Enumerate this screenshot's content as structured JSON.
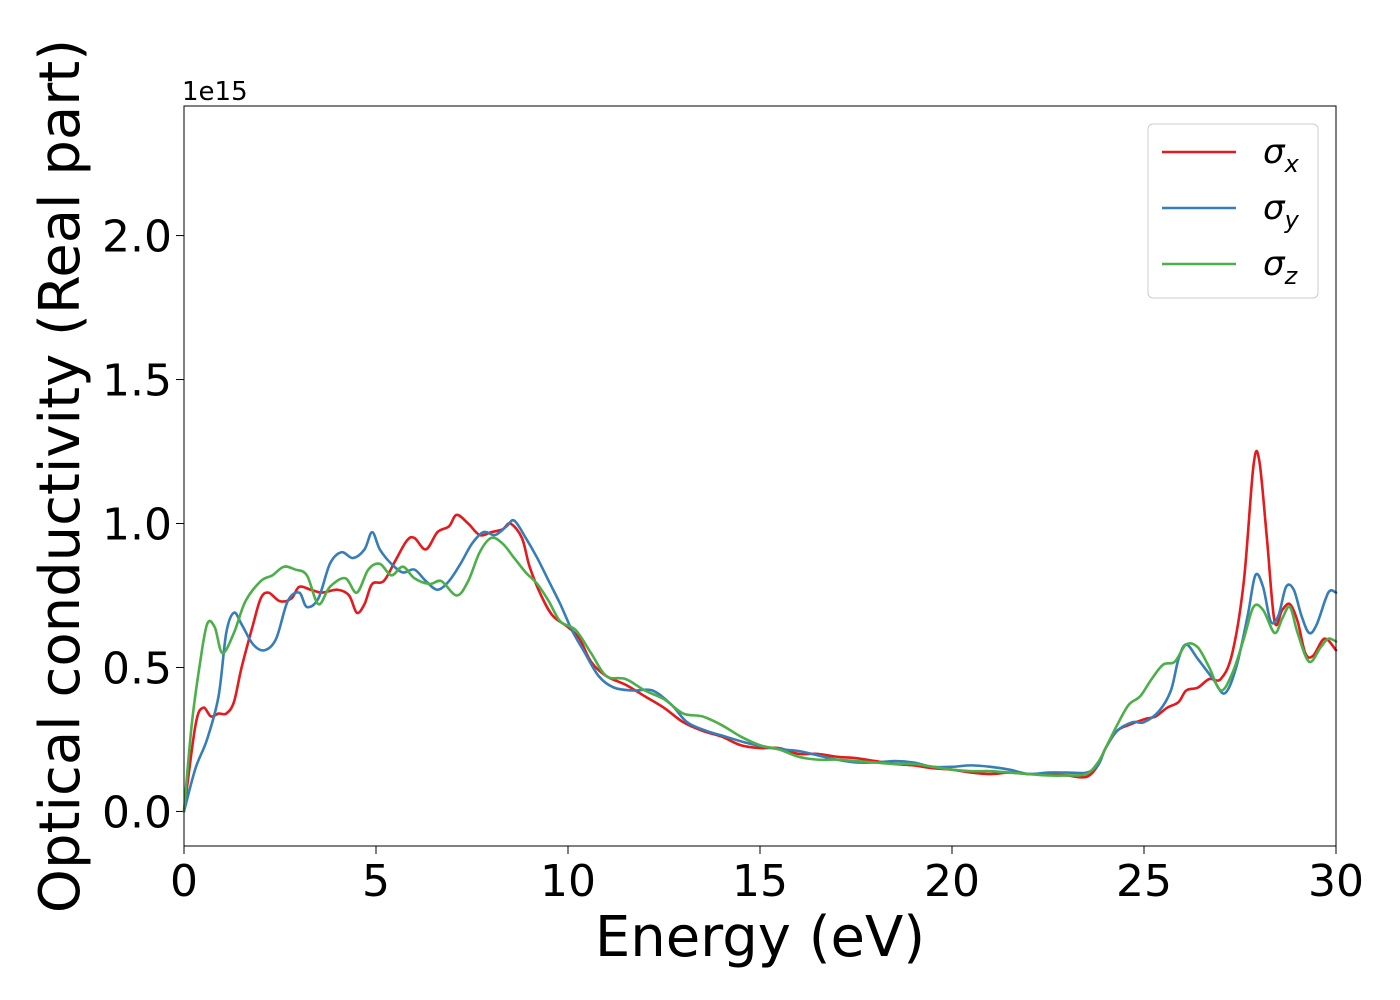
{
  "chart_data": {
    "type": "line",
    "title": "",
    "xlabel": "Energy (eV)",
    "ylabel": "Optical conductivity (Real part)",
    "y_offset_label": "1e15",
    "xlim": [
      0,
      30
    ],
    "ylim": [
      -0.12,
      2.45
    ],
    "y_scale_factor": 1000000000000000.0,
    "grid": false,
    "legend_position": "top-right",
    "x_ticks": [
      0,
      5,
      10,
      15,
      20,
      25,
      30
    ],
    "x_tick_labels": [
      "0",
      "5",
      "10",
      "15",
      "20",
      "25",
      "30"
    ],
    "y_ticks": [
      0.0,
      0.5,
      1.0,
      1.5,
      2.0
    ],
    "y_tick_labels": [
      "0.0",
      "0.5",
      "1.0",
      "1.5",
      "2.0"
    ],
    "series": [
      {
        "name": "σx",
        "name_base": "σ",
        "name_sub": "x",
        "color": "#e41a1c",
        "points": [
          [
            0,
            0.0
          ],
          [
            0.3,
            0.3
          ],
          [
            0.5,
            0.36
          ],
          [
            0.7,
            0.33
          ],
          [
            0.9,
            0.34
          ],
          [
            1.1,
            0.34
          ],
          [
            1.3,
            0.38
          ],
          [
            1.5,
            0.5
          ],
          [
            1.8,
            0.65
          ],
          [
            2.0,
            0.74
          ],
          [
            2.2,
            0.76
          ],
          [
            2.5,
            0.73
          ],
          [
            2.8,
            0.74
          ],
          [
            3.0,
            0.78
          ],
          [
            3.3,
            0.77
          ],
          [
            3.6,
            0.76
          ],
          [
            4.0,
            0.77
          ],
          [
            4.3,
            0.75
          ],
          [
            4.5,
            0.69
          ],
          [
            4.7,
            0.72
          ],
          [
            4.9,
            0.79
          ],
          [
            5.2,
            0.8
          ],
          [
            5.5,
            0.87
          ],
          [
            5.8,
            0.94
          ],
          [
            6.0,
            0.95
          ],
          [
            6.3,
            0.91
          ],
          [
            6.6,
            0.97
          ],
          [
            6.9,
            0.99
          ],
          [
            7.1,
            1.03
          ],
          [
            7.4,
            1.0
          ],
          [
            7.7,
            0.96
          ],
          [
            8.0,
            0.97
          ],
          [
            8.3,
            0.98
          ],
          [
            8.5,
            1.0
          ],
          [
            8.8,
            0.95
          ],
          [
            9.0,
            0.85
          ],
          [
            9.3,
            0.75
          ],
          [
            9.6,
            0.68
          ],
          [
            10.0,
            0.64
          ],
          [
            10.3,
            0.6
          ],
          [
            10.6,
            0.52
          ],
          [
            11.0,
            0.47
          ],
          [
            11.5,
            0.44
          ],
          [
            12.0,
            0.4
          ],
          [
            12.5,
            0.36
          ],
          [
            13.0,
            0.31
          ],
          [
            13.5,
            0.28
          ],
          [
            14.0,
            0.26
          ],
          [
            14.5,
            0.23
          ],
          [
            15.0,
            0.22
          ],
          [
            15.5,
            0.22
          ],
          [
            16.0,
            0.2
          ],
          [
            16.5,
            0.2
          ],
          [
            17.0,
            0.19
          ],
          [
            17.5,
            0.185
          ],
          [
            18.0,
            0.175
          ],
          [
            18.5,
            0.165
          ],
          [
            19.0,
            0.16
          ],
          [
            19.5,
            0.15
          ],
          [
            20.0,
            0.145
          ],
          [
            20.5,
            0.135
          ],
          [
            21.0,
            0.13
          ],
          [
            21.5,
            0.135
          ],
          [
            22.0,
            0.13
          ],
          [
            22.5,
            0.13
          ],
          [
            23.0,
            0.125
          ],
          [
            23.5,
            0.12
          ],
          [
            23.8,
            0.16
          ],
          [
            24.0,
            0.22
          ],
          [
            24.3,
            0.28
          ],
          [
            24.6,
            0.3
          ],
          [
            25.0,
            0.32
          ],
          [
            25.3,
            0.33
          ],
          [
            25.6,
            0.36
          ],
          [
            25.9,
            0.38
          ],
          [
            26.1,
            0.42
          ],
          [
            26.4,
            0.43
          ],
          [
            26.7,
            0.46
          ],
          [
            27.0,
            0.46
          ],
          [
            27.3,
            0.55
          ],
          [
            27.6,
            0.8
          ],
          [
            27.85,
            1.2
          ],
          [
            28.0,
            1.22
          ],
          [
            28.2,
            0.95
          ],
          [
            28.4,
            0.66
          ],
          [
            28.6,
            0.7
          ],
          [
            28.8,
            0.72
          ],
          [
            29.0,
            0.66
          ],
          [
            29.2,
            0.55
          ],
          [
            29.4,
            0.54
          ],
          [
            29.7,
            0.6
          ],
          [
            30.0,
            0.56
          ]
        ]
      },
      {
        "name": "σy",
        "name_base": "σ",
        "name_sub": "y",
        "color": "#377eb8",
        "points": [
          [
            0,
            0.0
          ],
          [
            0.3,
            0.15
          ],
          [
            0.6,
            0.25
          ],
          [
            0.9,
            0.4
          ],
          [
            1.1,
            0.62
          ],
          [
            1.3,
            0.69
          ],
          [
            1.5,
            0.65
          ],
          [
            1.8,
            0.58
          ],
          [
            2.1,
            0.56
          ],
          [
            2.4,
            0.6
          ],
          [
            2.7,
            0.73
          ],
          [
            3.0,
            0.76
          ],
          [
            3.2,
            0.71
          ],
          [
            3.5,
            0.74
          ],
          [
            3.8,
            0.86
          ],
          [
            4.1,
            0.9
          ],
          [
            4.4,
            0.88
          ],
          [
            4.7,
            0.91
          ],
          [
            4.9,
            0.97
          ],
          [
            5.1,
            0.91
          ],
          [
            5.4,
            0.86
          ],
          [
            5.7,
            0.83
          ],
          [
            6.0,
            0.84
          ],
          [
            6.3,
            0.8
          ],
          [
            6.6,
            0.77
          ],
          [
            6.9,
            0.8
          ],
          [
            7.2,
            0.86
          ],
          [
            7.5,
            0.93
          ],
          [
            7.8,
            0.97
          ],
          [
            8.1,
            0.96
          ],
          [
            8.4,
            0.99
          ],
          [
            8.6,
            1.01
          ],
          [
            8.9,
            0.95
          ],
          [
            9.2,
            0.88
          ],
          [
            9.5,
            0.8
          ],
          [
            9.8,
            0.72
          ],
          [
            10.1,
            0.63
          ],
          [
            10.4,
            0.56
          ],
          [
            10.8,
            0.47
          ],
          [
            11.2,
            0.43
          ],
          [
            11.7,
            0.42
          ],
          [
            12.2,
            0.42
          ],
          [
            12.7,
            0.37
          ],
          [
            13.1,
            0.31
          ],
          [
            13.6,
            0.28
          ],
          [
            14.1,
            0.26
          ],
          [
            14.6,
            0.24
          ],
          [
            15.1,
            0.225
          ],
          [
            15.6,
            0.215
          ],
          [
            16.0,
            0.21
          ],
          [
            16.5,
            0.195
          ],
          [
            17.0,
            0.18
          ],
          [
            17.5,
            0.17
          ],
          [
            18.0,
            0.17
          ],
          [
            18.5,
            0.175
          ],
          [
            19.0,
            0.17
          ],
          [
            19.5,
            0.155
          ],
          [
            20.0,
            0.155
          ],
          [
            20.5,
            0.16
          ],
          [
            21.0,
            0.155
          ],
          [
            21.5,
            0.145
          ],
          [
            22.0,
            0.13
          ],
          [
            22.5,
            0.135
          ],
          [
            23.0,
            0.135
          ],
          [
            23.5,
            0.135
          ],
          [
            23.8,
            0.16
          ],
          [
            24.0,
            0.22
          ],
          [
            24.3,
            0.28
          ],
          [
            24.7,
            0.31
          ],
          [
            25.0,
            0.31
          ],
          [
            25.4,
            0.35
          ],
          [
            25.7,
            0.42
          ],
          [
            25.9,
            0.53
          ],
          [
            26.1,
            0.58
          ],
          [
            26.4,
            0.53
          ],
          [
            26.8,
            0.46
          ],
          [
            27.1,
            0.41
          ],
          [
            27.4,
            0.5
          ],
          [
            27.7,
            0.68
          ],
          [
            27.9,
            0.82
          ],
          [
            28.1,
            0.78
          ],
          [
            28.3,
            0.66
          ],
          [
            28.5,
            0.68
          ],
          [
            28.7,
            0.78
          ],
          [
            28.9,
            0.77
          ],
          [
            29.1,
            0.68
          ],
          [
            29.3,
            0.62
          ],
          [
            29.5,
            0.65
          ],
          [
            29.8,
            0.76
          ],
          [
            30.0,
            0.76
          ]
        ]
      },
      {
        "name": "σz",
        "name_base": "σ",
        "name_sub": "z",
        "color": "#4daf4a",
        "points": [
          [
            0,
            0.0
          ],
          [
            0.2,
            0.3
          ],
          [
            0.4,
            0.5
          ],
          [
            0.6,
            0.65
          ],
          [
            0.8,
            0.64
          ],
          [
            1.0,
            0.55
          ],
          [
            1.3,
            0.62
          ],
          [
            1.6,
            0.73
          ],
          [
            2.0,
            0.8
          ],
          [
            2.3,
            0.82
          ],
          [
            2.6,
            0.85
          ],
          [
            2.9,
            0.84
          ],
          [
            3.2,
            0.82
          ],
          [
            3.5,
            0.72
          ],
          [
            3.8,
            0.78
          ],
          [
            4.2,
            0.81
          ],
          [
            4.5,
            0.76
          ],
          [
            4.8,
            0.84
          ],
          [
            5.1,
            0.86
          ],
          [
            5.4,
            0.82
          ],
          [
            5.7,
            0.85
          ],
          [
            6.0,
            0.81
          ],
          [
            6.4,
            0.79
          ],
          [
            6.7,
            0.8
          ],
          [
            7.1,
            0.75
          ],
          [
            7.4,
            0.8
          ],
          [
            7.7,
            0.9
          ],
          [
            8.0,
            0.95
          ],
          [
            8.3,
            0.93
          ],
          [
            8.6,
            0.88
          ],
          [
            8.9,
            0.83
          ],
          [
            9.2,
            0.79
          ],
          [
            9.5,
            0.73
          ],
          [
            9.8,
            0.66
          ],
          [
            10.2,
            0.63
          ],
          [
            10.6,
            0.55
          ],
          [
            11.0,
            0.47
          ],
          [
            11.5,
            0.46
          ],
          [
            12.0,
            0.42
          ],
          [
            12.5,
            0.39
          ],
          [
            13.0,
            0.34
          ],
          [
            13.5,
            0.33
          ],
          [
            14.0,
            0.3
          ],
          [
            14.5,
            0.26
          ],
          [
            15.0,
            0.23
          ],
          [
            15.5,
            0.215
          ],
          [
            16.0,
            0.19
          ],
          [
            16.5,
            0.18
          ],
          [
            17.0,
            0.18
          ],
          [
            17.5,
            0.175
          ],
          [
            18.0,
            0.17
          ],
          [
            18.5,
            0.165
          ],
          [
            19.0,
            0.165
          ],
          [
            19.5,
            0.155
          ],
          [
            20.0,
            0.145
          ],
          [
            20.5,
            0.14
          ],
          [
            21.0,
            0.14
          ],
          [
            21.5,
            0.135
          ],
          [
            22.0,
            0.13
          ],
          [
            22.5,
            0.125
          ],
          [
            23.0,
            0.125
          ],
          [
            23.5,
            0.13
          ],
          [
            23.8,
            0.17
          ],
          [
            24.0,
            0.22
          ],
          [
            24.3,
            0.3
          ],
          [
            24.6,
            0.37
          ],
          [
            24.9,
            0.4
          ],
          [
            25.2,
            0.46
          ],
          [
            25.5,
            0.51
          ],
          [
            25.8,
            0.52
          ],
          [
            26.1,
            0.58
          ],
          [
            26.4,
            0.57
          ],
          [
            26.7,
            0.5
          ],
          [
            27.0,
            0.42
          ],
          [
            27.3,
            0.48
          ],
          [
            27.6,
            0.6
          ],
          [
            27.85,
            0.71
          ],
          [
            28.1,
            0.7
          ],
          [
            28.4,
            0.62
          ],
          [
            28.6,
            0.67
          ],
          [
            28.8,
            0.71
          ],
          [
            29.0,
            0.62
          ],
          [
            29.3,
            0.52
          ],
          [
            29.6,
            0.57
          ],
          [
            29.8,
            0.6
          ],
          [
            30.0,
            0.59
          ]
        ]
      }
    ]
  }
}
